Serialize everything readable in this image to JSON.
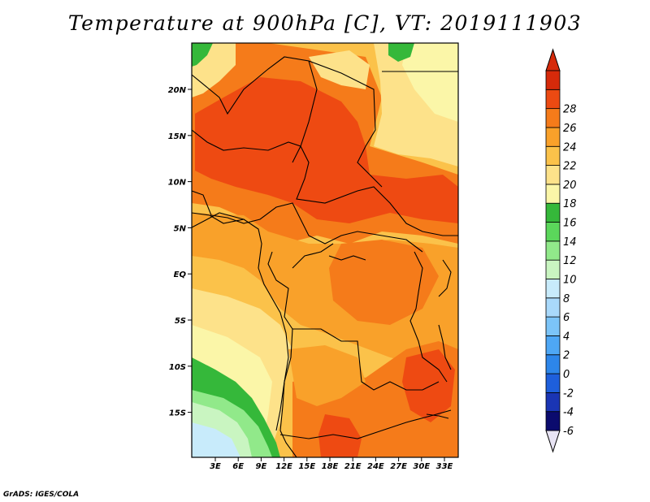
{
  "title": "Temperature at 900hPa [C], VT: 2019111903",
  "credit": "GrADS: IGES/COLA",
  "lat_ticks": [
    "20N",
    "15N",
    "10N",
    "5N",
    "EQ",
    "5S",
    "10S",
    "15S"
  ],
  "lon_ticks": [
    "3E",
    "6E",
    "9E",
    "12E",
    "15E",
    "18E",
    "21E",
    "24E",
    "27E",
    "30E",
    "33E"
  ],
  "colorbar": {
    "levels": [
      "-6",
      "-4",
      "-2",
      "0",
      "2",
      "4",
      "6",
      "8",
      "10",
      "12",
      "14",
      "16",
      "18",
      "20",
      "22",
      "24",
      "26",
      "28"
    ],
    "colors": [
      "#0b0b6e",
      "#1a35b4",
      "#1e5fdc",
      "#2d86ea",
      "#4ea7f5",
      "#7cc4f8",
      "#a9d9fb",
      "#c8ebfb",
      "#c9f5c1",
      "#91e98a",
      "#5bd75b",
      "#35b83a",
      "#fbf6a8",
      "#fde28a",
      "#fbc24a",
      "#f9a12a",
      "#f57b1a",
      "#ec4a12",
      "#d62a0a"
    ],
    "lower_arrow_color": "#e8e4f4",
    "upper_arrow_color": "#d62a0a"
  },
  "map_colors": {
    "hot": "#ee4a12",
    "warm": "#f57b1a",
    "mid": "#f9a12a",
    "mild": "#fbc24a",
    "cool": "#fde28a",
    "pale": "#fbf6a8",
    "green": "#35b83a",
    "light_green": "#91e98a",
    "very_light_green": "#c9f5c1",
    "cyan": "#c8ebfb"
  }
}
